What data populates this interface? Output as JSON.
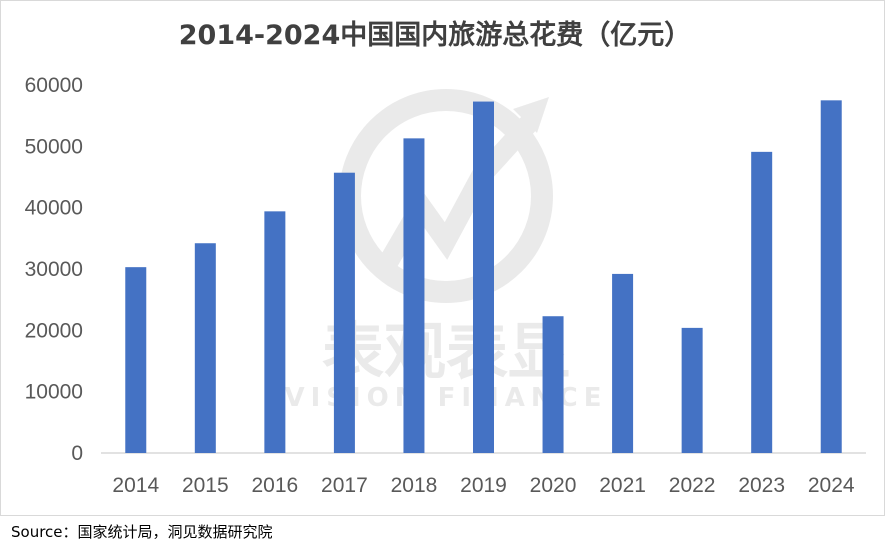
{
  "chart_data": {
    "type": "bar",
    "title": "2014-2024中国国内旅游总花费（亿元）",
    "xlabel": "",
    "ylabel": "",
    "categories": [
      "2014",
      "2015",
      "2016",
      "2017",
      "2018",
      "2019",
      "2020",
      "2021",
      "2022",
      "2023",
      "2024"
    ],
    "values": [
      30300,
      34200,
      39400,
      45700,
      51300,
      57300,
      22300,
      29200,
      20400,
      49100,
      57500
    ],
    "ylim": [
      0,
      60000
    ],
    "yticks": [
      "0",
      "10000",
      "20000",
      "30000",
      "40000",
      "50000",
      "60000"
    ],
    "bar_color": "#4472C4",
    "grid": false,
    "legend": "none"
  },
  "watermark": {
    "brand_cn": "表观表显",
    "brand_en": "VISION FINANCE"
  },
  "source": "Source：国家统计局，洞见数据研究院"
}
